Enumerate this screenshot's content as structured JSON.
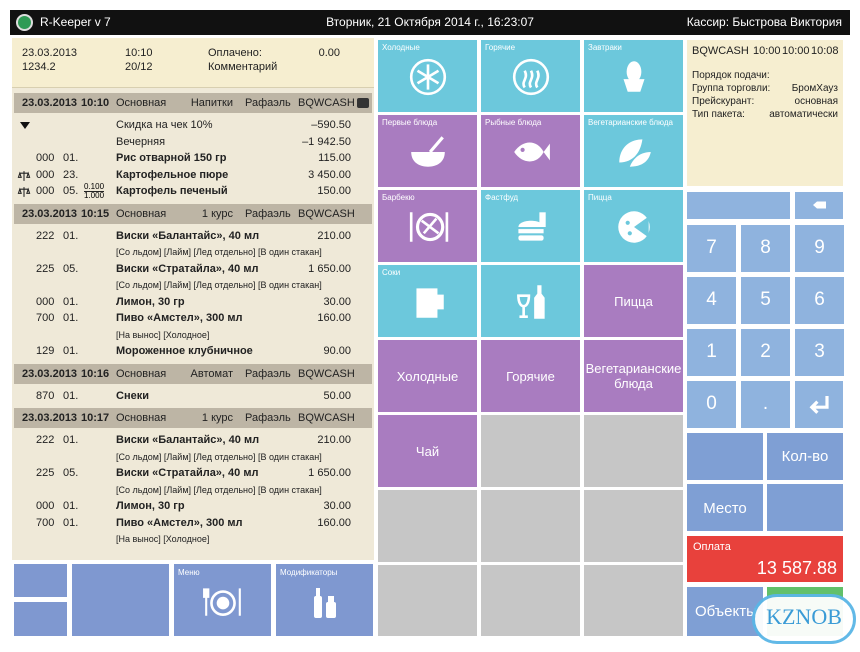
{
  "header": {
    "app_name": "R-Keeper v 7",
    "datetime": "Вторник, 21 Октября 2014 г., 16:23:07",
    "cashier": "Кассир: Быстрова Виктория"
  },
  "info": {
    "date": "23.03.2013",
    "code": "1234.2",
    "time": "10:10",
    "table": "20/12",
    "paid_label": "Оплачено:",
    "paid_value": "0.00",
    "comment_label": "Комментарий"
  },
  "orders": [
    {
      "date": "23.03.2013",
      "time": "10:10",
      "menu": "Основная",
      "course": "Напитки",
      "waiter": "Рафаэль",
      "station": "BQWCASH",
      "items": [
        {
          "name": "Скидка на чек 10%",
          "sum": "–590.50"
        },
        {
          "name": "Вечерняя",
          "sum": "–1 942.50"
        },
        {
          "qty": "000",
          "code": "01.",
          "name": "Рис отварной 150 гр",
          "sum": "115.00"
        },
        {
          "qty": "000",
          "code": "23.",
          "name": "Картофельное пюре",
          "sum": "3 450.00"
        },
        {
          "qty": "000",
          "code": "05.",
          "fraction": [
            "0.100",
            "1.000"
          ],
          "name": "Картофель печеный",
          "sum": "150.00"
        }
      ]
    },
    {
      "date": "23.03.2013",
      "time": "10:15",
      "menu": "Основная",
      "course": "1 курс",
      "waiter": "Рафаэль",
      "station": "BQWCASH",
      "items": [
        {
          "qty": "222",
          "code": "01.",
          "name": "Виски «Балантайс», 40 мл",
          "sum": "210.00",
          "modifiers": "[Со льдом] [Лайм] [Лед отдельно] [В один стакан]"
        },
        {
          "qty": "225",
          "code": "05.",
          "name": "Виски «Стратайла», 40 мл",
          "sum": "1 650.00",
          "modifiers": "[Со льдом] [Лайм] [Лед отдельно] [В один стакан]"
        },
        {
          "qty": "000",
          "code": "01.",
          "name": "Лимон, 30 гр",
          "sum": "30.00"
        },
        {
          "qty": "700",
          "code": "01.",
          "name": "Пиво «Амстел», 300 мл",
          "sum": "160.00",
          "modifiers": "[На вынос] [Холодное]"
        },
        {
          "qty": "129",
          "code": "01.",
          "name": "Мороженное клубничное",
          "sum": "90.00"
        }
      ]
    },
    {
      "date": "23.03.2013",
      "time": "10:16",
      "menu": "Основная",
      "course": "Автомат",
      "waiter": "Рафаэль",
      "station": "BQWCASH",
      "items": [
        {
          "qty": "870",
          "code": "01.",
          "name": "Снеки",
          "sum": "50.00"
        }
      ]
    },
    {
      "date": "23.03.2013",
      "time": "10:17",
      "menu": "Основная",
      "course": "1 курс",
      "waiter": "Рафаэль",
      "station": "BQWCASH",
      "items": [
        {
          "qty": "222",
          "code": "01.",
          "name": "Виски «Балантайс», 40 мл",
          "sum": "210.00",
          "modifiers": "[Со льдом] [Лайм] [Лед отдельно] [В один стакан]"
        },
        {
          "qty": "225",
          "code": "05.",
          "name": "Виски «Стратайла», 40 мл",
          "sum": "1 650.00",
          "modifiers": "[Со льдом] [Лайм] [Лед отдельно] [В один стакан]"
        },
        {
          "qty": "000",
          "code": "01.",
          "name": "Лимон, 30 гр",
          "sum": "30.00"
        },
        {
          "qty": "700",
          "code": "01.",
          "name": "Пиво «Амстел», 300 мл",
          "sum": "160.00",
          "modifiers": "[На вынос] [Холодное]"
        }
      ]
    }
  ],
  "bottom_buttons": [
    "Меню",
    "Модификаторы"
  ],
  "menu_tiles": [
    "Холодные",
    "Горячие",
    "Завтраки",
    "Первые блюда",
    "Рыбные блюда",
    "Вегетарианские блюда",
    "Барбекю",
    "Фастфуд",
    "Пицца",
    "Соки",
    "Пицца",
    "Холодные",
    "Горячие",
    "Вегетарианские блюда",
    "Чай"
  ],
  "station_info": {
    "station": "BQWCASH",
    "times": [
      "10:00",
      "10:00",
      "10:08"
    ],
    "fields": [
      {
        "label": "Порядок подачи:"
      },
      {
        "label": "Группа торговли:",
        "value": "БромХауз"
      },
      {
        "label": "Прейскурант:",
        "value": "основная"
      },
      {
        "label": "Тип пакета:",
        "value": "автоматически"
      }
    ]
  },
  "keypad": [
    "7",
    "8",
    "9",
    "4",
    "5",
    "6",
    "1",
    "2",
    "3",
    "0",
    "."
  ],
  "actions": {
    "quantity": "Кол-во",
    "place": "Место",
    "payment_label": "Оплата",
    "payment_total": "13 587.88",
    "objects": "Объекты"
  },
  "watermark": "KZNOB"
}
